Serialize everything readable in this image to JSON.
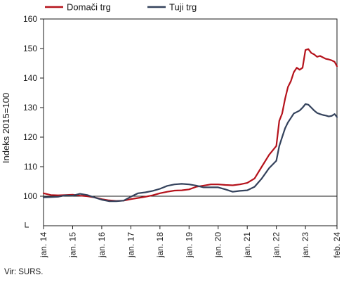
{
  "chart_data": {
    "type": "line",
    "ylabel": "Indeks 2015=100",
    "ylim": [
      90,
      160
    ],
    "yticks": [
      100,
      110,
      120,
      130,
      140,
      150,
      160
    ],
    "xlim": [
      2014.0,
      2024.083
    ],
    "xtick_labels": [
      "jan. 14",
      "jan. 15",
      "jan. 16",
      "jan. 17",
      "jan. 18",
      "jan. 19",
      "jan. 20",
      "jan. 21",
      "jan. 22",
      "jan. 23",
      "feb. 24"
    ],
    "xtick_values": [
      2014.0,
      2015.0,
      2016.0,
      2017.0,
      2018.0,
      2019.0,
      2020.0,
      2021.0,
      2022.0,
      2023.0,
      2024.083
    ],
    "reference_line": 100,
    "legend_position": "top-left",
    "series": [
      {
        "name": "Domači trg",
        "color": "#b5121b",
        "points": [
          [
            2014.0,
            101.0
          ],
          [
            2014.25,
            100.4
          ],
          [
            2014.5,
            100.3
          ],
          [
            2014.75,
            100.4
          ],
          [
            2015.0,
            100.5
          ],
          [
            2015.25,
            100.2
          ],
          [
            2015.5,
            100.0
          ],
          [
            2015.75,
            99.6
          ],
          [
            2016.0,
            99.0
          ],
          [
            2016.25,
            98.6
          ],
          [
            2016.5,
            98.4
          ],
          [
            2016.75,
            98.5
          ],
          [
            2017.0,
            99.0
          ],
          [
            2017.25,
            99.4
          ],
          [
            2017.5,
            99.8
          ],
          [
            2017.75,
            100.3
          ],
          [
            2018.0,
            101.0
          ],
          [
            2018.25,
            101.5
          ],
          [
            2018.5,
            101.9
          ],
          [
            2018.75,
            102.0
          ],
          [
            2019.0,
            102.3
          ],
          [
            2019.25,
            103.2
          ],
          [
            2019.5,
            103.6
          ],
          [
            2019.75,
            104.0
          ],
          [
            2020.0,
            104.0
          ],
          [
            2020.25,
            103.8
          ],
          [
            2020.5,
            103.7
          ],
          [
            2020.75,
            104.0
          ],
          [
            2021.0,
            104.5
          ],
          [
            2021.25,
            106.0
          ],
          [
            2021.5,
            110.0
          ],
          [
            2021.75,
            114.0
          ],
          [
            2022.0,
            117.0
          ],
          [
            2022.1,
            125.5
          ],
          [
            2022.2,
            128.0
          ],
          [
            2022.3,
            133.0
          ],
          [
            2022.4,
            137.0
          ],
          [
            2022.5,
            139.0
          ],
          [
            2022.6,
            142.0
          ],
          [
            2022.7,
            143.5
          ],
          [
            2022.8,
            142.8
          ],
          [
            2022.9,
            143.5
          ],
          [
            2023.0,
            149.5
          ],
          [
            2023.1,
            149.8
          ],
          [
            2023.2,
            148.5
          ],
          [
            2023.3,
            148.0
          ],
          [
            2023.4,
            147.2
          ],
          [
            2023.5,
            147.5
          ],
          [
            2023.6,
            147.0
          ],
          [
            2023.7,
            146.5
          ],
          [
            2023.8,
            146.3
          ],
          [
            2023.9,
            146.0
          ],
          [
            2024.0,
            145.5
          ],
          [
            2024.083,
            144.0
          ]
        ]
      },
      {
        "name": "Tuji trg",
        "color": "#34425c",
        "points": [
          [
            2014.0,
            99.6
          ],
          [
            2014.25,
            99.7
          ],
          [
            2014.5,
            99.8
          ],
          [
            2014.75,
            100.3
          ],
          [
            2015.0,
            100.2
          ],
          [
            2015.25,
            100.8
          ],
          [
            2015.5,
            100.4
          ],
          [
            2015.75,
            99.6
          ],
          [
            2016.0,
            98.8
          ],
          [
            2016.25,
            98.3
          ],
          [
            2016.5,
            98.3
          ],
          [
            2016.75,
            98.5
          ],
          [
            2017.0,
            99.8
          ],
          [
            2017.25,
            101.0
          ],
          [
            2017.5,
            101.3
          ],
          [
            2017.75,
            101.8
          ],
          [
            2018.0,
            102.5
          ],
          [
            2018.25,
            103.5
          ],
          [
            2018.5,
            104.0
          ],
          [
            2018.75,
            104.2
          ],
          [
            2019.0,
            104.0
          ],
          [
            2019.25,
            103.6
          ],
          [
            2019.5,
            103.0
          ],
          [
            2019.75,
            103.0
          ],
          [
            2020.0,
            103.0
          ],
          [
            2020.25,
            102.3
          ],
          [
            2020.5,
            101.5
          ],
          [
            2020.75,
            101.8
          ],
          [
            2021.0,
            102.0
          ],
          [
            2021.25,
            103.2
          ],
          [
            2021.5,
            106.0
          ],
          [
            2021.75,
            109.5
          ],
          [
            2022.0,
            112.0
          ],
          [
            2022.1,
            117.0
          ],
          [
            2022.2,
            120.0
          ],
          [
            2022.3,
            123.0
          ],
          [
            2022.4,
            125.0
          ],
          [
            2022.5,
            126.5
          ],
          [
            2022.6,
            128.0
          ],
          [
            2022.7,
            128.5
          ],
          [
            2022.8,
            129.0
          ],
          [
            2022.9,
            130.0
          ],
          [
            2023.0,
            131.2
          ],
          [
            2023.1,
            131.0
          ],
          [
            2023.2,
            130.0
          ],
          [
            2023.3,
            129.0
          ],
          [
            2023.4,
            128.2
          ],
          [
            2023.5,
            127.8
          ],
          [
            2023.6,
            127.5
          ],
          [
            2023.7,
            127.3
          ],
          [
            2023.8,
            127.0
          ],
          [
            2023.9,
            127.2
          ],
          [
            2024.0,
            127.8
          ],
          [
            2024.083,
            126.8
          ]
        ]
      }
    ]
  },
  "source_note": "Vir: SURS."
}
